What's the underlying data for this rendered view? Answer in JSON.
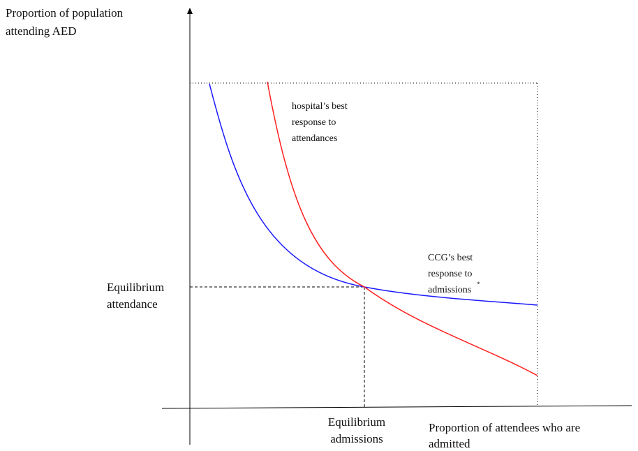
{
  "y_axis_label": [
    "Proportion of population",
    "attending AED"
  ],
  "x_axis_label": [
    "Proportion of attendees who are",
    "admitted"
  ],
  "hospital_curve_label": [
    "hospital’s best",
    "response to",
    "attendances"
  ],
  "ccg_curve_label": {
    "lines": [
      "CCG’s best",
      "response to",
      "admissions"
    ],
    "footnote_mark": "*"
  },
  "equilibrium_y_label": [
    "Equilibrium",
    "attendance"
  ],
  "equilibrium_x_label": [
    "Equilibrium",
    "admissions"
  ]
}
